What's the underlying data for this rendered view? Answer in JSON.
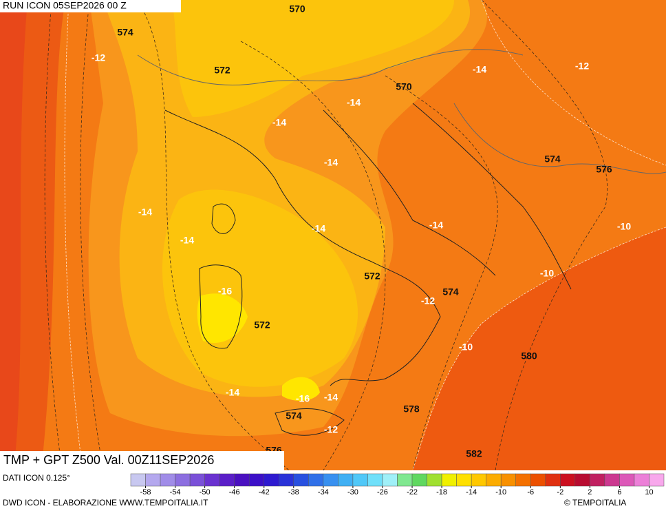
{
  "header": {
    "run": "RUN ICON 05SEP2026 00 Z",
    "title": "TMP + GPT Z500 Val. 00Z11SEP2026"
  },
  "footer": {
    "source": "DATI ICON 0.125°",
    "credits": "DWD ICON - ELABORAZIONE WWW.TEMPOITALIA.IT",
    "copyright": "© TEMPOITALIA"
  },
  "geopotential_labels": [
    "570",
    "574",
    "572",
    "570",
    "574",
    "576",
    "572",
    "574",
    "572",
    "580",
    "578",
    "574",
    "582",
    "576"
  ],
  "temperature_labels": [
    "-12",
    "-14",
    "-12",
    "-14",
    "-14",
    "-14",
    "-14",
    "-14",
    "-14",
    "-14",
    "-10",
    "-10",
    "-16",
    "-12",
    "-10",
    "-14",
    "-16",
    "-14",
    "-12"
  ],
  "colorbar": {
    "range": [
      -60,
      12
    ],
    "colors": [
      "#c8c8f0",
      "#b4a8ee",
      "#a08ce8",
      "#8c6ee0",
      "#7a50d8",
      "#6a32d0",
      "#5a1ec8",
      "#4a10c0",
      "#3c10c8",
      "#2e1ad0",
      "#2a32d8",
      "#2850e0",
      "#3070e8",
      "#3890f0",
      "#40b0f4",
      "#50c8f8",
      "#70e0fa",
      "#a0f0f8",
      "#80e890",
      "#60d860",
      "#a0e030",
      "#f0f000",
      "#ffe000",
      "#ffc800",
      "#fcac00",
      "#f89000",
      "#f47000",
      "#ec5000",
      "#e03010",
      "#cc1020",
      "#b80c30",
      "#c02060",
      "#cc3890",
      "#dc58b8",
      "#ec80d8",
      "#f8a8ec"
    ],
    "ticks": [
      -58,
      -54,
      -50,
      -46,
      -42,
      -38,
      -34,
      -30,
      -26,
      -22,
      -18,
      -14,
      -10,
      -6,
      -2,
      2,
      6,
      10
    ]
  }
}
